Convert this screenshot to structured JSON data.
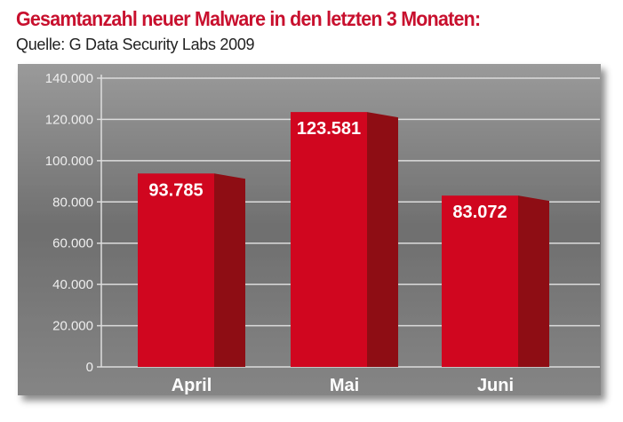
{
  "chart_data": {
    "type": "bar",
    "title": "Gesamtanzahl neuer Malware in den letzten 3 Monaten:",
    "subtitle": "Quelle: G Data Security Labs 2009",
    "categories": [
      "April",
      "Mai",
      "Juni"
    ],
    "values": [
      93785,
      123581,
      83072
    ],
    "value_labels": [
      "93.785",
      "123.581",
      "83.072"
    ],
    "xlabel": "",
    "ylabel": "",
    "ylim": [
      0,
      140000
    ],
    "yticks": [
      0,
      20000,
      40000,
      60000,
      80000,
      100000,
      120000,
      140000
    ],
    "ytick_labels": [
      "0",
      "20.000",
      "40.000",
      "60.000",
      "80.000",
      "100.000",
      "120.000",
      "140.000"
    ],
    "grid": true,
    "colors": {
      "bar_front": "#d0061f",
      "bar_side": "#8e0d14",
      "background": "#7a7a7a",
      "title": "#c8102e"
    }
  }
}
